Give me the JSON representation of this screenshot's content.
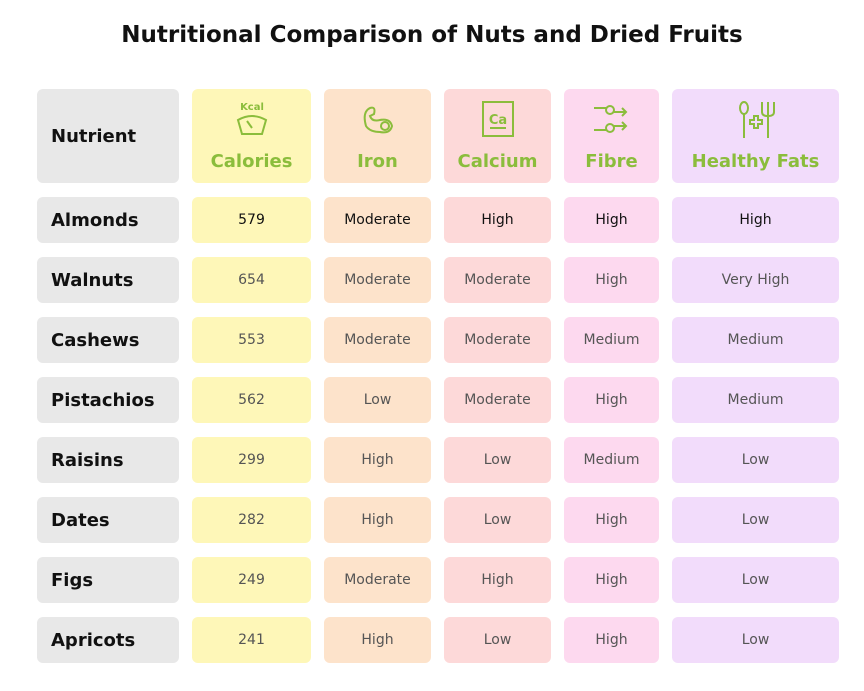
{
  "title": "Nutritional Comparison of Nuts and Dried Fruits",
  "header": {
    "label": "Nutrient",
    "columns": [
      {
        "label": "Calories",
        "icon": "scale-kcal-icon",
        "icon_text": "Kcal"
      },
      {
        "label": "Iron",
        "icon": "muscle-arm-icon"
      },
      {
        "label": "Calcium",
        "icon": "calcium-element-icon",
        "icon_text": "Ca"
      },
      {
        "label": "Fibre",
        "icon": "fibre-arrows-icon"
      },
      {
        "label": "Healthy Fats",
        "icon": "utensils-health-icon"
      }
    ]
  },
  "rows": [
    {
      "name": "Almonds",
      "values": [
        "579",
        "Moderate",
        "High",
        "High",
        "High"
      ]
    },
    {
      "name": "Walnuts",
      "values": [
        "654",
        "Moderate",
        "Moderate",
        "High",
        "Very High"
      ]
    },
    {
      "name": "Cashews",
      "values": [
        "553",
        "Moderate",
        "Moderate",
        "Medium",
        "Medium"
      ]
    },
    {
      "name": "Pistachios",
      "values": [
        "562",
        "Low",
        "Moderate",
        "High",
        "Medium"
      ]
    },
    {
      "name": "Raisins",
      "values": [
        "299",
        "High",
        "Low",
        "Medium",
        "Low"
      ]
    },
    {
      "name": "Dates",
      "values": [
        "282",
        "High",
        "Low",
        "High",
        "Low"
      ]
    },
    {
      "name": "Figs",
      "values": [
        "249",
        "Moderate",
        "High",
        "High",
        "Low"
      ]
    },
    {
      "name": "Apricots",
      "values": [
        "241",
        "High",
        "Low",
        "High",
        "Low"
      ]
    }
  ],
  "colors": {
    "accent": "#8bbd3c",
    "label_bg": "#e8e8e8",
    "columns": [
      "#fef7b8",
      "#fde3cb",
      "#fdd9d9",
      "#fdd9ef",
      "#f2dcfb"
    ]
  }
}
